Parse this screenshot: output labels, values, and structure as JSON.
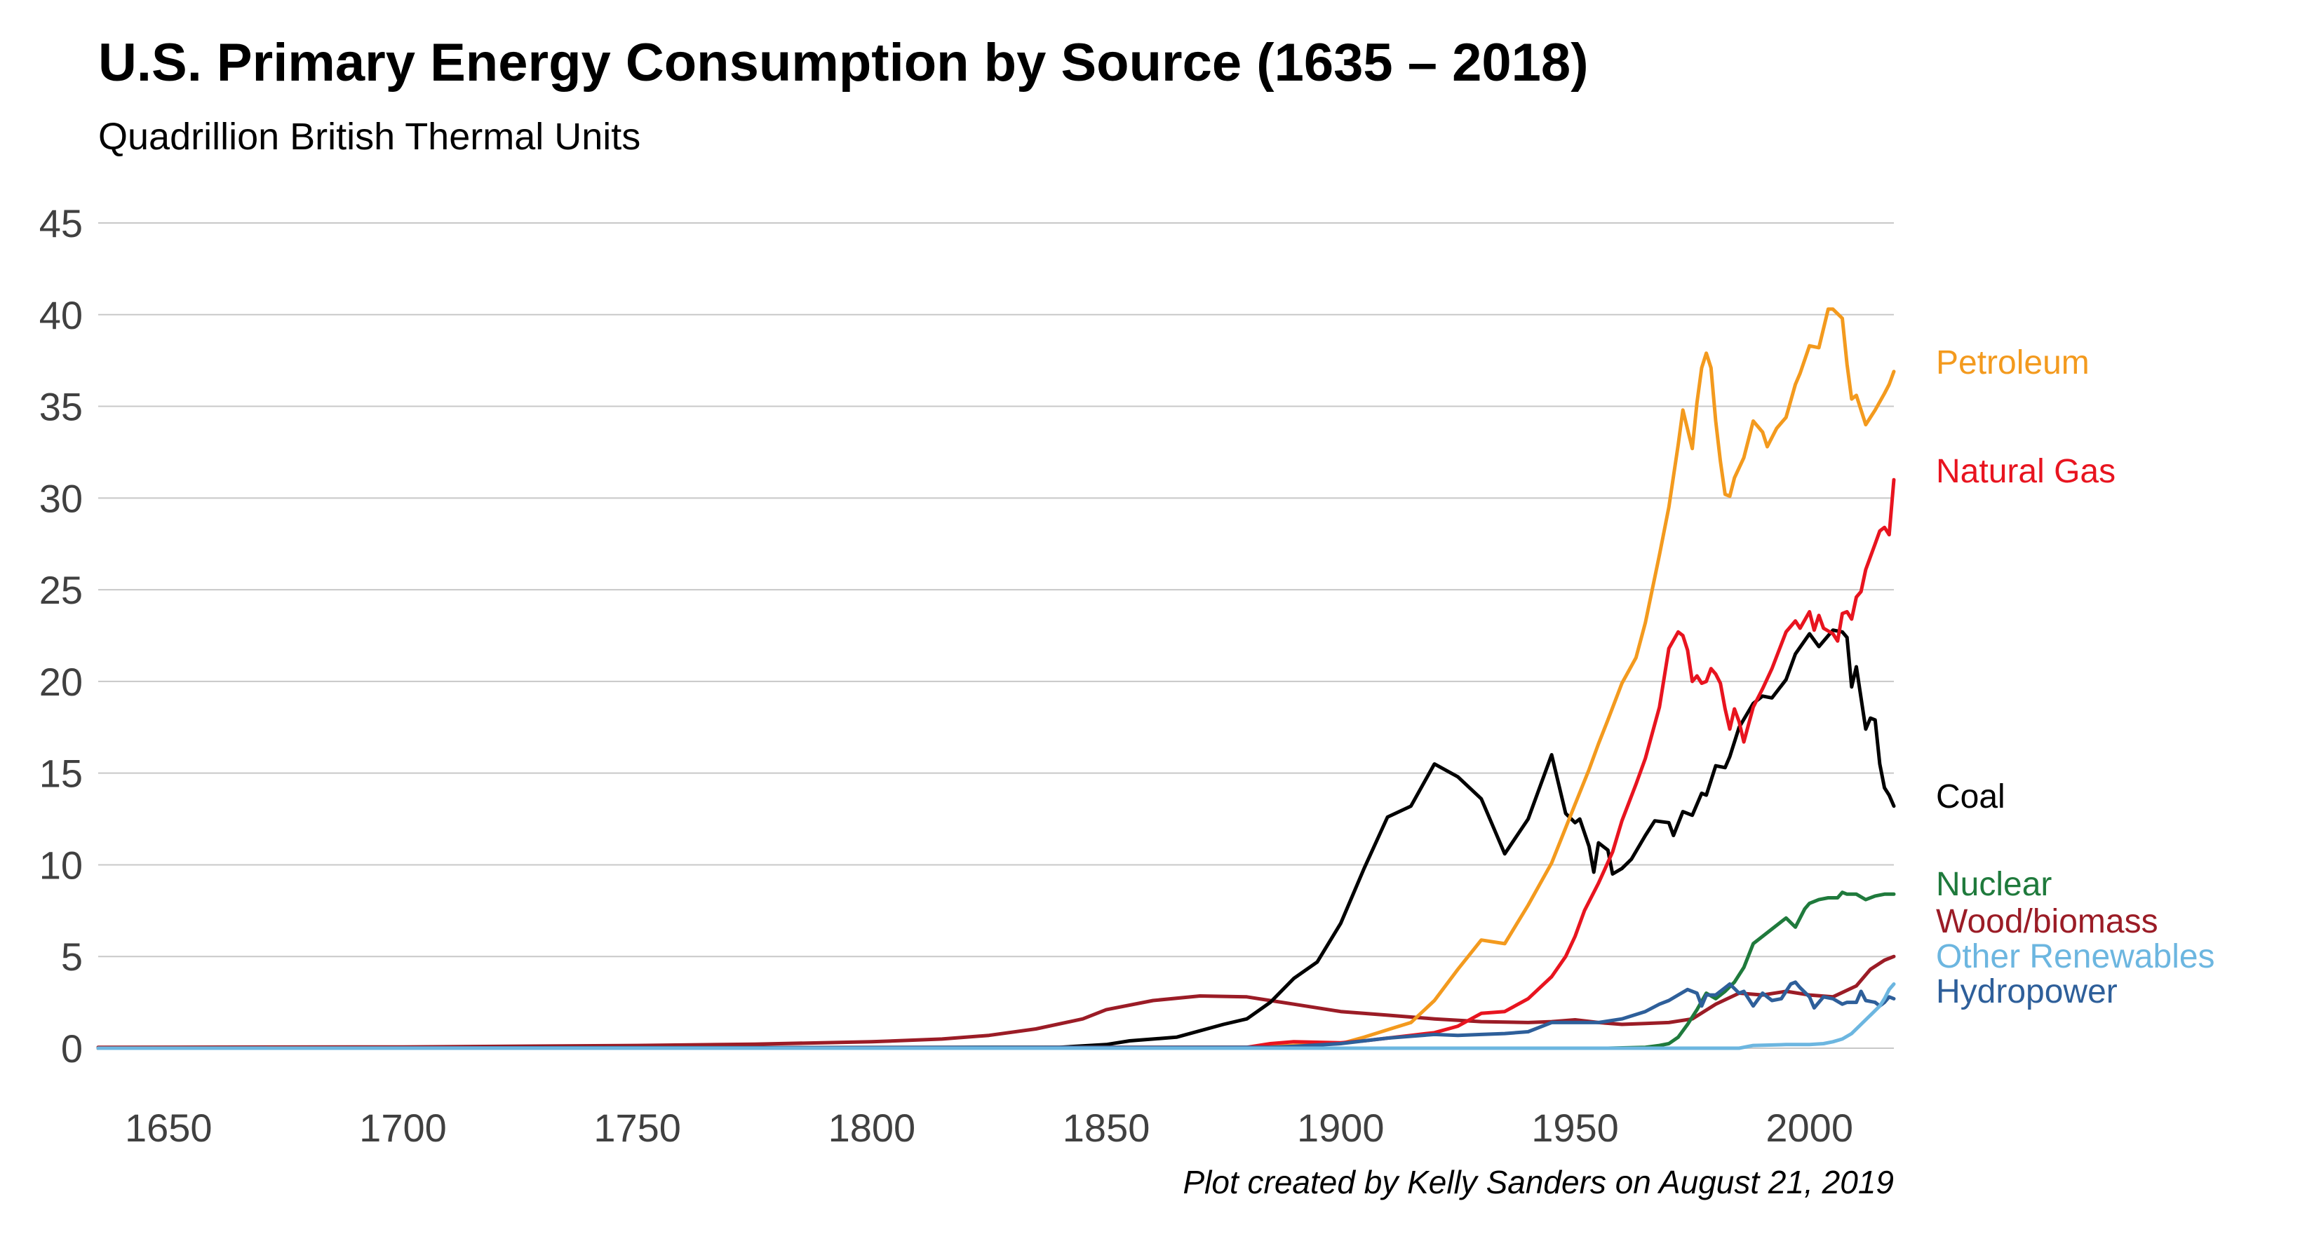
{
  "chart_data": {
    "type": "line",
    "title": "U.S. Primary Energy Consumption by Source (1635 – 2018)",
    "subtitle": "Quadrillion British Thermal Units",
    "credit": "Plot created by Kelly Sanders on August 21, 2019",
    "xlim": [
      1635,
      2018
    ],
    "ylim": [
      0,
      45
    ],
    "x_ticks": [
      1650,
      1700,
      1750,
      1800,
      1850,
      1900,
      1950,
      2000
    ],
    "y_ticks": [
      0,
      5,
      10,
      15,
      20,
      25,
      30,
      35,
      40,
      45
    ],
    "grid": true,
    "legend_placement": "right, inline labels",
    "series": [
      {
        "name": "Wood/biomass",
        "color": "#9b1c26",
        "points": [
          [
            1635,
            0.05
          ],
          [
            1700,
            0.07
          ],
          [
            1750,
            0.15
          ],
          [
            1775,
            0.22
          ],
          [
            1800,
            0.35
          ],
          [
            1815,
            0.5
          ],
          [
            1825,
            0.7
          ],
          [
            1835,
            1.05
          ],
          [
            1845,
            1.6
          ],
          [
            1850,
            2.1
          ],
          [
            1860,
            2.6
          ],
          [
            1870,
            2.85
          ],
          [
            1880,
            2.8
          ],
          [
            1885,
            2.6
          ],
          [
            1890,
            2.4
          ],
          [
            1900,
            2.0
          ],
          [
            1910,
            1.8
          ],
          [
            1920,
            1.6
          ],
          [
            1930,
            1.45
          ],
          [
            1940,
            1.4
          ],
          [
            1945,
            1.45
          ],
          [
            1950,
            1.55
          ],
          [
            1955,
            1.4
          ],
          [
            1960,
            1.3
          ],
          [
            1965,
            1.35
          ],
          [
            1970,
            1.4
          ],
          [
            1975,
            1.6
          ],
          [
            1980,
            2.4
          ],
          [
            1985,
            3.0
          ],
          [
            1990,
            2.9
          ],
          [
            1995,
            3.1
          ],
          [
            2000,
            2.9
          ],
          [
            2005,
            2.8
          ],
          [
            2010,
            3.4
          ],
          [
            2013,
            4.3
          ],
          [
            2016,
            4.8
          ],
          [
            2018,
            5.0
          ]
        ]
      },
      {
        "name": "Coal",
        "color": "#000000",
        "points": [
          [
            1635,
            0
          ],
          [
            1840,
            0.05
          ],
          [
            1850,
            0.2
          ],
          [
            1855,
            0.4
          ],
          [
            1865,
            0.6
          ],
          [
            1875,
            1.3
          ],
          [
            1880,
            1.6
          ],
          [
            1885,
            2.5
          ],
          [
            1890,
            3.8
          ],
          [
            1895,
            4.7
          ],
          [
            1900,
            6.8
          ],
          [
            1905,
            9.8
          ],
          [
            1910,
            12.6
          ],
          [
            1915,
            13.2
          ],
          [
            1920,
            15.5
          ],
          [
            1925,
            14.8
          ],
          [
            1930,
            13.6
          ],
          [
            1935,
            10.6
          ],
          [
            1940,
            12.5
          ],
          [
            1945,
            16.0
          ],
          [
            1948,
            12.8
          ],
          [
            1950,
            12.3
          ],
          [
            1951,
            12.5
          ],
          [
            1953,
            11.0
          ],
          [
            1954,
            9.6
          ],
          [
            1955,
            11.2
          ],
          [
            1957,
            10.8
          ],
          [
            1958,
            9.5
          ],
          [
            1960,
            9.8
          ],
          [
            1962,
            10.3
          ],
          [
            1965,
            11.6
          ],
          [
            1967,
            12.4
          ],
          [
            1970,
            12.3
          ],
          [
            1971,
            11.6
          ],
          [
            1973,
            12.9
          ],
          [
            1975,
            12.7
          ],
          [
            1977,
            13.9
          ],
          [
            1978,
            13.8
          ],
          [
            1980,
            15.4
          ],
          [
            1982,
            15.3
          ],
          [
            1983,
            15.9
          ],
          [
            1985,
            17.5
          ],
          [
            1988,
            18.8
          ],
          [
            1990,
            19.2
          ],
          [
            1992,
            19.1
          ],
          [
            1995,
            20.1
          ],
          [
            1997,
            21.5
          ],
          [
            2000,
            22.6
          ],
          [
            2002,
            21.9
          ],
          [
            2005,
            22.8
          ],
          [
            2007,
            22.7
          ],
          [
            2008,
            22.4
          ],
          [
            2009,
            19.7
          ],
          [
            2010,
            20.8
          ],
          [
            2012,
            17.4
          ],
          [
            2013,
            18.0
          ],
          [
            2014,
            17.9
          ],
          [
            2015,
            15.5
          ],
          [
            2016,
            14.2
          ],
          [
            2017,
            13.8
          ],
          [
            2018,
            13.2
          ]
        ]
      },
      {
        "name": "Petroleum",
        "color": "#f39a1e",
        "points": [
          [
            1635,
            0
          ],
          [
            1880,
            0.05
          ],
          [
            1890,
            0.15
          ],
          [
            1900,
            0.25
          ],
          [
            1905,
            0.6
          ],
          [
            1910,
            1.0
          ],
          [
            1915,
            1.4
          ],
          [
            1920,
            2.6
          ],
          [
            1925,
            4.3
          ],
          [
            1930,
            5.9
          ],
          [
            1935,
            5.7
          ],
          [
            1940,
            7.8
          ],
          [
            1945,
            10.1
          ],
          [
            1950,
            13.3
          ],
          [
            1953,
            15.2
          ],
          [
            1955,
            16.6
          ],
          [
            1957,
            17.9
          ],
          [
            1960,
            19.9
          ],
          [
            1963,
            21.3
          ],
          [
            1965,
            23.2
          ],
          [
            1968,
            26.9
          ],
          [
            1970,
            29.5
          ],
          [
            1972,
            32.9
          ],
          [
            1973,
            34.8
          ],
          [
            1975,
            32.7
          ],
          [
            1976,
            35.2
          ],
          [
            1977,
            37.1
          ],
          [
            1978,
            37.9
          ],
          [
            1979,
            37.1
          ],
          [
            1980,
            34.2
          ],
          [
            1981,
            32.0
          ],
          [
            1982,
            30.2
          ],
          [
            1983,
            30.1
          ],
          [
            1984,
            31.1
          ],
          [
            1986,
            32.2
          ],
          [
            1988,
            34.2
          ],
          [
            1990,
            33.6
          ],
          [
            1991,
            32.8
          ],
          [
            1993,
            33.8
          ],
          [
            1995,
            34.4
          ],
          [
            1997,
            36.2
          ],
          [
            1998,
            36.8
          ],
          [
            2000,
            38.3
          ],
          [
            2002,
            38.2
          ],
          [
            2004,
            40.3
          ],
          [
            2005,
            40.3
          ],
          [
            2007,
            39.8
          ],
          [
            2008,
            37.3
          ],
          [
            2009,
            35.4
          ],
          [
            2010,
            35.6
          ],
          [
            2012,
            34.0
          ],
          [
            2014,
            34.8
          ],
          [
            2016,
            35.7
          ],
          [
            2017,
            36.2
          ],
          [
            2018,
            36.9
          ]
        ]
      },
      {
        "name": "Natural Gas",
        "color": "#e8141f",
        "points": [
          [
            1635,
            0
          ],
          [
            1880,
            0.05
          ],
          [
            1885,
            0.25
          ],
          [
            1890,
            0.35
          ],
          [
            1900,
            0.3
          ],
          [
            1905,
            0.4
          ],
          [
            1910,
            0.55
          ],
          [
            1915,
            0.7
          ],
          [
            1920,
            0.85
          ],
          [
            1925,
            1.2
          ],
          [
            1930,
            1.9
          ],
          [
            1935,
            2.0
          ],
          [
            1940,
            2.7
          ],
          [
            1945,
            3.9
          ],
          [
            1948,
            5.0
          ],
          [
            1950,
            6.1
          ],
          [
            1952,
            7.5
          ],
          [
            1955,
            9.0
          ],
          [
            1958,
            10.7
          ],
          [
            1960,
            12.4
          ],
          [
            1963,
            14.4
          ],
          [
            1965,
            15.8
          ],
          [
            1968,
            18.6
          ],
          [
            1970,
            21.8
          ],
          [
            1972,
            22.7
          ],
          [
            1973,
            22.5
          ],
          [
            1974,
            21.7
          ],
          [
            1975,
            20.0
          ],
          [
            1976,
            20.3
          ],
          [
            1977,
            19.9
          ],
          [
            1978,
            20.0
          ],
          [
            1979,
            20.7
          ],
          [
            1980,
            20.4
          ],
          [
            1981,
            19.9
          ],
          [
            1982,
            18.5
          ],
          [
            1983,
            17.4
          ],
          [
            1984,
            18.5
          ],
          [
            1985,
            17.8
          ],
          [
            1986,
            16.7
          ],
          [
            1988,
            18.6
          ],
          [
            1990,
            19.6
          ],
          [
            1992,
            20.7
          ],
          [
            1995,
            22.7
          ],
          [
            1997,
            23.3
          ],
          [
            1998,
            22.9
          ],
          [
            2000,
            23.8
          ],
          [
            2001,
            22.8
          ],
          [
            2002,
            23.6
          ],
          [
            2003,
            22.9
          ],
          [
            2005,
            22.6
          ],
          [
            2006,
            22.2
          ],
          [
            2007,
            23.7
          ],
          [
            2008,
            23.8
          ],
          [
            2009,
            23.4
          ],
          [
            2010,
            24.6
          ],
          [
            2011,
            24.9
          ],
          [
            2012,
            26.1
          ],
          [
            2014,
            27.5
          ],
          [
            2015,
            28.2
          ],
          [
            2016,
            28.4
          ],
          [
            2017,
            28.0
          ],
          [
            2018,
            31.0
          ]
        ]
      },
      {
        "name": "Nuclear",
        "color": "#1f7a3c",
        "points": [
          [
            1635,
            0
          ],
          [
            1957,
            0.0
          ],
          [
            1965,
            0.05
          ],
          [
            1968,
            0.15
          ],
          [
            1970,
            0.25
          ],
          [
            1972,
            0.6
          ],
          [
            1974,
            1.3
          ],
          [
            1976,
            2.1
          ],
          [
            1978,
            3.0
          ],
          [
            1980,
            2.7
          ],
          [
            1982,
            3.1
          ],
          [
            1984,
            3.6
          ],
          [
            1986,
            4.4
          ],
          [
            1988,
            5.7
          ],
          [
            1990,
            6.1
          ],
          [
            1992,
            6.5
          ],
          [
            1995,
            7.1
          ],
          [
            1997,
            6.6
          ],
          [
            1999,
            7.6
          ],
          [
            2000,
            7.9
          ],
          [
            2002,
            8.1
          ],
          [
            2004,
            8.2
          ],
          [
            2006,
            8.2
          ],
          [
            2007,
            8.5
          ],
          [
            2008,
            8.4
          ],
          [
            2010,
            8.4
          ],
          [
            2012,
            8.1
          ],
          [
            2014,
            8.3
          ],
          [
            2016,
            8.4
          ],
          [
            2018,
            8.4
          ]
        ]
      },
      {
        "name": "Hydropower",
        "color": "#2e5f9a",
        "points": [
          [
            1635,
            0
          ],
          [
            1885,
            0.05
          ],
          [
            1890,
            0.1
          ],
          [
            1900,
            0.25
          ],
          [
            1905,
            0.4
          ],
          [
            1910,
            0.55
          ],
          [
            1920,
            0.75
          ],
          [
            1925,
            0.7
          ],
          [
            1930,
            0.75
          ],
          [
            1935,
            0.8
          ],
          [
            1940,
            0.9
          ],
          [
            1945,
            1.4
          ],
          [
            1950,
            1.4
          ],
          [
            1955,
            1.4
          ],
          [
            1960,
            1.6
          ],
          [
            1965,
            2.0
          ],
          [
            1968,
            2.4
          ],
          [
            1970,
            2.6
          ],
          [
            1972,
            2.9
          ],
          [
            1974,
            3.2
          ],
          [
            1976,
            3.0
          ],
          [
            1977,
            2.3
          ],
          [
            1978,
            2.9
          ],
          [
            1980,
            2.9
          ],
          [
            1982,
            3.3
          ],
          [
            1983,
            3.5
          ],
          [
            1985,
            3.0
          ],
          [
            1986,
            3.1
          ],
          [
            1988,
            2.3
          ],
          [
            1990,
            3.0
          ],
          [
            1992,
            2.6
          ],
          [
            1994,
            2.7
          ],
          [
            1996,
            3.5
          ],
          [
            1997,
            3.6
          ],
          [
            1998,
            3.3
          ],
          [
            2000,
            2.8
          ],
          [
            2001,
            2.2
          ],
          [
            2003,
            2.8
          ],
          [
            2005,
            2.7
          ],
          [
            2007,
            2.4
          ],
          [
            2008,
            2.5
          ],
          [
            2010,
            2.5
          ],
          [
            2011,
            3.1
          ],
          [
            2012,
            2.6
          ],
          [
            2014,
            2.5
          ],
          [
            2015,
            2.3
          ],
          [
            2016,
            2.5
          ],
          [
            2017,
            2.8
          ],
          [
            2018,
            2.7
          ]
        ]
      },
      {
        "name": "Other Renewables",
        "color": "#6cb6e0",
        "points": [
          [
            1635,
            0
          ],
          [
            1985,
            0.0
          ],
          [
            1988,
            0.15
          ],
          [
            1995,
            0.2
          ],
          [
            2000,
            0.2
          ],
          [
            2003,
            0.25
          ],
          [
            2005,
            0.35
          ],
          [
            2007,
            0.5
          ],
          [
            2009,
            0.8
          ],
          [
            2011,
            1.3
          ],
          [
            2013,
            1.8
          ],
          [
            2015,
            2.3
          ],
          [
            2016,
            2.7
          ],
          [
            2017,
            3.2
          ],
          [
            2018,
            3.5
          ]
        ]
      }
    ]
  }
}
